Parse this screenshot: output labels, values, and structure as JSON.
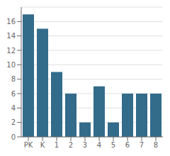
{
  "chart_data": {
    "type": "bar",
    "categories": [
      "PK",
      "K",
      "1",
      "2",
      "3",
      "4",
      "5",
      "6",
      "7",
      "8"
    ],
    "values": [
      17,
      15,
      9,
      6,
      2,
      7,
      2,
      6,
      6,
      6
    ],
    "color": "#336b8a",
    "ylim": [
      0,
      18
    ],
    "yticks": [
      0,
      2,
      4,
      6,
      8,
      10,
      12,
      14,
      16
    ],
    "grid": true
  }
}
